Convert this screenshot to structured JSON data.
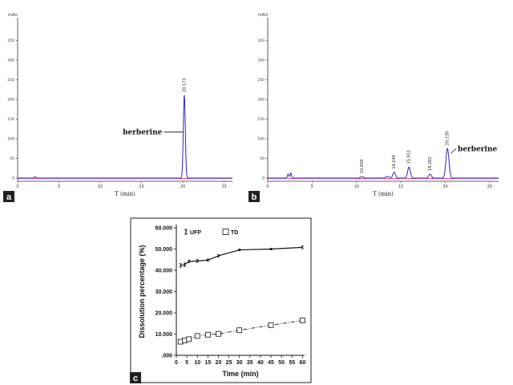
{
  "chart_data": [
    {
      "panel": "a",
      "type": "line",
      "y_unit": "mAU",
      "xlabel": "T (min)",
      "xlim": [
        0,
        26
      ],
      "ylim": [
        0,
        400
      ],
      "x_ticks": [
        0,
        5,
        10,
        15,
        20,
        25
      ],
      "y_ticks": [
        0,
        50,
        100,
        150,
        200,
        250,
        300,
        350
      ],
      "x_tick_labels": [
        "0",
        "5",
        "10",
        "15",
        "20",
        "25"
      ],
      "y_tick_labels": [
        "0",
        "50",
        "100",
        "150",
        "200",
        "250",
        "300",
        "350"
      ],
      "peaks": [
        {
          "rt": 20.173,
          "label": "20.173",
          "height": 210,
          "width": 0.12
        }
      ],
      "small_peaks": [
        {
          "rt": 2.1,
          "height": 3,
          "width": 0.12
        }
      ],
      "annotations": [
        {
          "text": "berberine",
          "x": 17.5,
          "y": 117,
          "arrow_x": 20.0
        }
      ],
      "baseline_color": "#1a1aa0",
      "signal_color": "#2a2ac0",
      "reference_color": "#d0307a"
    },
    {
      "panel": "b",
      "type": "line",
      "y_unit": "mAU",
      "xlabel": "T (min)",
      "xlim": [
        0,
        26
      ],
      "ylim": [
        0,
        400
      ],
      "x_ticks": [
        0,
        5,
        10,
        15,
        20,
        25
      ],
      "y_ticks": [
        0,
        50,
        100,
        150,
        200,
        250,
        300,
        350
      ],
      "x_tick_labels": [
        "0",
        "5",
        "10",
        "15",
        "20",
        "25"
      ],
      "y_tick_labels": [
        "0",
        "50",
        "100",
        "150",
        "200",
        "250",
        "300",
        "350"
      ],
      "peaks": [
        {
          "rt": 10.6,
          "label": "10.600",
          "height": 4,
          "width": 0.15
        },
        {
          "rt": 14.24,
          "label": "14.240",
          "height": 15,
          "width": 0.15
        },
        {
          "rt": 15.911,
          "label": "15.911",
          "height": 28,
          "width": 0.15
        },
        {
          "rt": 18.282,
          "label": "18.282",
          "height": 10,
          "width": 0.15
        },
        {
          "rt": 20.239,
          "label": "20.239",
          "height": 75,
          "width": 0.17
        }
      ],
      "small_peaks": [
        {
          "rt": 2.3,
          "height": 10,
          "width": 0.08
        },
        {
          "rt": 2.6,
          "height": 13,
          "width": 0.08
        },
        {
          "rt": 13.5,
          "height": 4,
          "width": 0.2
        }
      ],
      "annotations": [
        {
          "text": "berberine",
          "x": 21.4,
          "y": 75,
          "arrow_x": 20.6
        }
      ],
      "baseline_color": "#1a1aa0",
      "signal_color": "#2a2ac0",
      "reference_color": "#d0307a"
    },
    {
      "panel": "c",
      "type": "line",
      "xlabel": "Time (min)",
      "ylabel": "Dissolution percentage (%)",
      "xlim": [
        0,
        61
      ],
      "ylim": [
        0,
        60
      ],
      "x_ticks": [
        0,
        5,
        10,
        15,
        20,
        25,
        30,
        35,
        40,
        45,
        50,
        55,
        60
      ],
      "y_ticks": [
        0,
        10,
        20,
        30,
        40,
        50,
        60
      ],
      "x_tick_labels": [
        "0",
        "5",
        "10",
        "15",
        "20",
        "25",
        "30",
        "35",
        "40",
        "45",
        "50",
        "55",
        "60"
      ],
      "y_tick_labels": [
        ".000",
        "10.000",
        "20.000",
        "30.000",
        "40.000",
        "50.000",
        "60.000"
      ],
      "series": [
        {
          "name": "UFP",
          "x": [
            2,
            4,
            6,
            10,
            15,
            20,
            30,
            45,
            60
          ],
          "values": [
            42.3,
            42.6,
            44.2,
            44.4,
            44.8,
            46.8,
            49.6,
            50.0,
            50.8
          ],
          "errors": [
            0.8,
            0.8,
            0.6,
            0.6,
            0.5,
            0.5,
            0.4,
            0.4,
            0.6
          ],
          "marker": "errorbar",
          "line": "solid"
        },
        {
          "name": "TD",
          "x": [
            2,
            4,
            6,
            10,
            15,
            20,
            30,
            45,
            60
          ],
          "values": [
            6.4,
            7.0,
            7.6,
            9.1,
            9.7,
            10.1,
            11.8,
            14.2,
            16.4
          ],
          "marker": "square",
          "line": "dashdot"
        }
      ]
    }
  ],
  "panels": {
    "a": {
      "tag": "a"
    },
    "b": {
      "tag": "b"
    },
    "c": {
      "tag": "c"
    }
  }
}
